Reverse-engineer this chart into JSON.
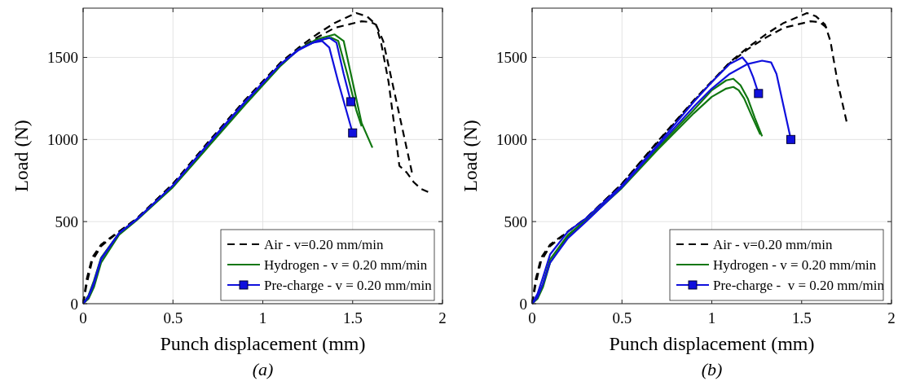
{
  "chart_data": [
    {
      "type": "line",
      "xlabel": "Punch displacement (mm)",
      "ylabel": "Load (N)",
      "annotations": [
        "(a)"
      ],
      "xlim": [
        0,
        2
      ],
      "ylim": [
        0,
        1800
      ],
      "xticks": [
        0,
        0.5,
        1,
        1.5,
        2
      ],
      "yticks": [
        0,
        500,
        1000,
        1500
      ],
      "grid": true,
      "legend": "bottom right",
      "series": [
        {
          "name": "Air - v=0.20 mm/min",
          "color": "#000000",
          "line_style": "dashed",
          "x": [
            0,
            0.02,
            0.05,
            0.1,
            0.2,
            0.3,
            0.5,
            0.7,
            0.9,
            1.1,
            1.2,
            1.3,
            1.4,
            1.52,
            1.58,
            1.63,
            1.67,
            1.7,
            1.75,
            1.8,
            1.83
          ],
          "values": [
            0,
            150,
            280,
            360,
            440,
            520,
            730,
            990,
            1240,
            1470,
            1560,
            1640,
            1710,
            1770,
            1750,
            1700,
            1600,
            1450,
            1200,
            950,
            800
          ]
        },
        {
          "color": "#000000",
          "line_style": "dashed",
          "x": [
            0,
            0.02,
            0.05,
            0.1,
            0.2,
            0.3,
            0.5,
            0.7,
            0.9,
            1.1,
            1.2,
            1.3,
            1.4,
            1.55,
            1.6,
            1.63,
            1.66,
            1.7,
            1.73,
            1.76,
            1.8,
            1.84,
            1.88,
            1.92
          ],
          "values": [
            0,
            120,
            260,
            350,
            440,
            520,
            730,
            985,
            1235,
            1465,
            1550,
            1620,
            1680,
            1720,
            1715,
            1700,
            1580,
            1350,
            1100,
            840,
            800,
            740,
            700,
            680
          ]
        },
        {
          "name": "Hydrogen - v = 0.20 mm/min",
          "color": "#117711",
          "x": [
            0,
            0.03,
            0.06,
            0.1,
            0.2,
            0.3,
            0.5,
            0.7,
            0.9,
            1.1,
            1.2,
            1.3,
            1.4,
            1.45,
            1.5,
            1.55,
            1.61
          ],
          "values": [
            0,
            30,
            100,
            250,
            420,
            510,
            710,
            960,
            1210,
            1450,
            1550,
            1610,
            1640,
            1600,
            1350,
            1100,
            950
          ]
        },
        {
          "color": "#117711",
          "x": [
            0,
            0.03,
            0.06,
            0.1,
            0.2,
            0.3,
            0.5,
            0.7,
            0.9,
            1.1,
            1.2,
            1.3,
            1.38,
            1.42,
            1.47,
            1.52,
            1.55
          ],
          "values": [
            0,
            50,
            140,
            280,
            430,
            515,
            715,
            965,
            1215,
            1455,
            1550,
            1600,
            1620,
            1600,
            1400,
            1180,
            1080
          ]
        },
        {
          "color": "#1010dd",
          "x": [
            0,
            0.03,
            0.06,
            0.1,
            0.2,
            0.3,
            0.5,
            0.7,
            0.9,
            1.1,
            1.2,
            1.3,
            1.37,
            1.41,
            1.45,
            1.49
          ],
          "values": [
            0,
            40,
            120,
            270,
            430,
            515,
            720,
            975,
            1225,
            1460,
            1550,
            1600,
            1620,
            1590,
            1400,
            1230
          ]
        },
        {
          "color": "#1010dd",
          "x": [
            0,
            0.03,
            0.06,
            0.1,
            0.2,
            0.3,
            0.5,
            0.7,
            0.9,
            1.1,
            1.2,
            1.28,
            1.33,
            1.37,
            1.42,
            1.5
          ],
          "values": [
            0,
            45,
            130,
            275,
            430,
            515,
            720,
            980,
            1230,
            1460,
            1545,
            1590,
            1600,
            1560,
            1350,
            1040
          ]
        },
        {
          "name": "Pre-charge - v = 0.20 mm/min",
          "type": "scatter",
          "marker": "square",
          "color": "#1010dd",
          "x": [
            1.49,
            1.5
          ],
          "values": [
            1230,
            1040
          ]
        }
      ]
    },
    {
      "type": "line",
      "xlabel": "Punch displacement (mm)",
      "ylabel": "Load (N)",
      "annotations": [
        "(b)"
      ],
      "xlim": [
        0,
        2
      ],
      "ylim": [
        0,
        1800
      ],
      "xticks": [
        0,
        0.5,
        1,
        1.5,
        2
      ],
      "yticks": [
        0,
        500,
        1000,
        1500
      ],
      "grid": true,
      "legend": "bottom right",
      "series": [
        {
          "name": "Air - v=0.20 mm/min",
          "color": "#000000",
          "line_style": "dashed",
          "x": [
            0,
            0.02,
            0.05,
            0.1,
            0.2,
            0.3,
            0.5,
            0.7,
            0.9,
            1.1,
            1.2,
            1.3,
            1.4,
            1.53,
            1.58,
            1.63,
            1.66,
            1.7,
            1.75
          ],
          "values": [
            0,
            150,
            280,
            360,
            440,
            520,
            730,
            990,
            1240,
            1470,
            1560,
            1640,
            1710,
            1770,
            1750,
            1700,
            1600,
            1350,
            1110
          ]
        },
        {
          "color": "#000000",
          "line_style": "dashed",
          "x": [
            0,
            0.02,
            0.05,
            0.1,
            0.2,
            0.3,
            0.5,
            0.7,
            0.9,
            1.1,
            1.2,
            1.3,
            1.4,
            1.55,
            1.6,
            1.64
          ],
          "values": [
            0,
            120,
            260,
            350,
            440,
            520,
            730,
            985,
            1235,
            1465,
            1550,
            1620,
            1680,
            1720,
            1715,
            1680
          ]
        },
        {
          "name": "Hydrogen - v = 0.20 mm/min",
          "color": "#117711",
          "x": [
            0,
            0.03,
            0.06,
            0.1,
            0.2,
            0.3,
            0.5,
            0.7,
            0.9,
            1.0,
            1.08,
            1.12,
            1.16,
            1.2,
            1.24,
            1.28
          ],
          "values": [
            0,
            40,
            120,
            270,
            420,
            510,
            710,
            950,
            1180,
            1300,
            1360,
            1370,
            1330,
            1250,
            1130,
            1020
          ]
        },
        {
          "color": "#117711",
          "x": [
            0,
            0.03,
            0.06,
            0.1,
            0.2,
            0.3,
            0.5,
            0.7,
            0.9,
            1.0,
            1.08,
            1.12,
            1.15,
            1.18,
            1.22,
            1.27
          ],
          "values": [
            0,
            30,
            100,
            250,
            410,
            505,
            705,
            940,
            1160,
            1260,
            1310,
            1320,
            1300,
            1250,
            1150,
            1030
          ]
        },
        {
          "color": "#1010dd",
          "x": [
            0,
            0.03,
            0.06,
            0.1,
            0.2,
            0.3,
            0.5,
            0.7,
            0.9,
            1.0,
            1.1,
            1.17,
            1.2,
            1.23,
            1.26
          ],
          "values": [
            0,
            60,
            160,
            300,
            440,
            520,
            720,
            970,
            1230,
            1350,
            1460,
            1500,
            1460,
            1380,
            1280
          ]
        },
        {
          "color": "#1010dd",
          "x": [
            0,
            0.03,
            0.06,
            0.1,
            0.2,
            0.3,
            0.5,
            0.7,
            0.9,
            1.0,
            1.1,
            1.2,
            1.28,
            1.33,
            1.36,
            1.4,
            1.44
          ],
          "values": [
            0,
            40,
            120,
            250,
            400,
            500,
            710,
            960,
            1200,
            1310,
            1400,
            1460,
            1480,
            1470,
            1400,
            1200,
            1000
          ]
        },
        {
          "name": "Pre-charge -  v = 0.20 mm/min",
          "type": "scatter",
          "marker": "square",
          "color": "#1010dd",
          "x": [
            1.26,
            1.44
          ],
          "values": [
            1280,
            1000
          ]
        }
      ]
    }
  ]
}
